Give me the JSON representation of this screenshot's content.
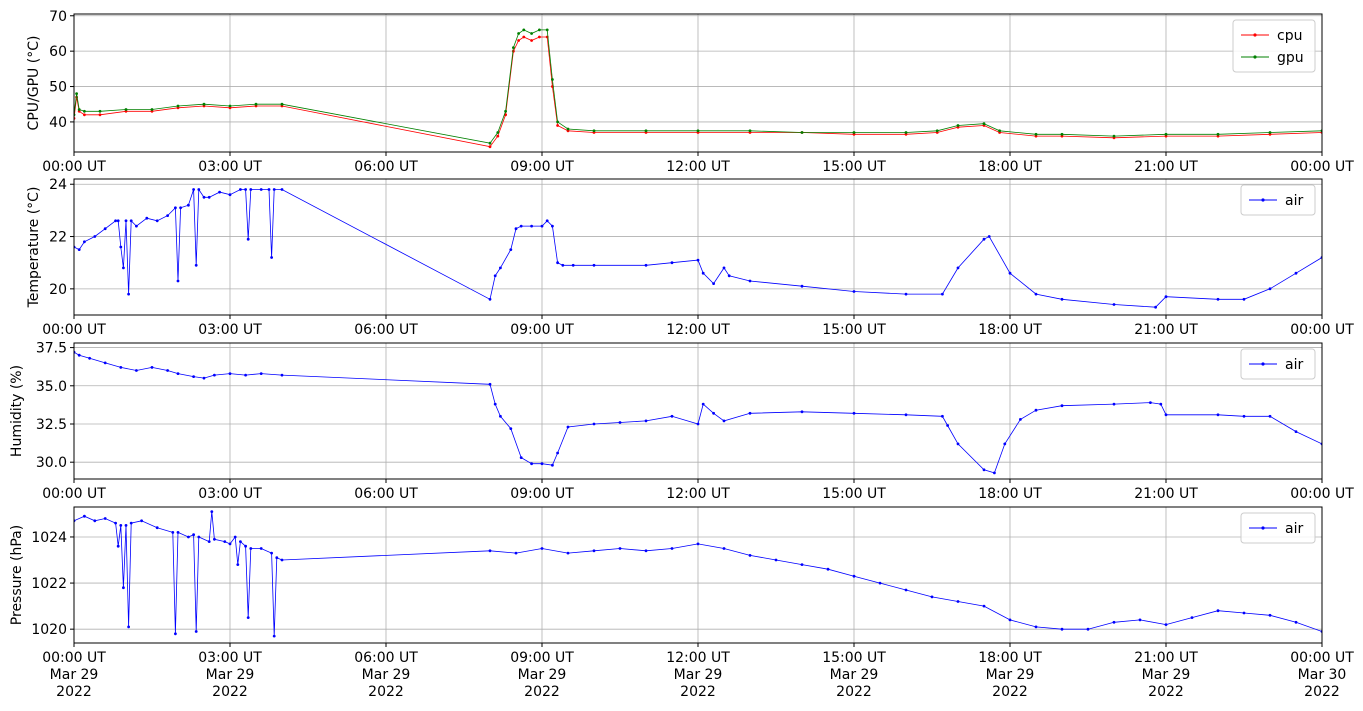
{
  "figure": {
    "background": "#ffffff",
    "grid_color": "#b0b0b0",
    "date_line_1": "Mar 29",
    "date_line_2": "2022",
    "date_line_1_end": "Mar 30",
    "date_line_2_end": "2022"
  },
  "chart_data": [
    {
      "type": "line",
      "name": "cpu-gpu-panel",
      "ylabel": "CPU/GPU (°C)",
      "xlim": [
        0,
        24
      ],
      "ylim": [
        31.5,
        70.5
      ],
      "yticks": [
        40,
        50,
        60,
        70
      ],
      "ytick_labels": [
        "40",
        "50",
        "60",
        "70"
      ],
      "xticks": [
        0,
        3,
        6,
        9,
        12,
        15,
        18,
        21,
        24
      ],
      "xtick_labels": [
        "00:00 UT",
        "03:00 UT",
        "06:00 UT",
        "09:00 UT",
        "12:00 UT",
        "15:00 UT",
        "18:00 UT",
        "21:00 UT",
        "00:00 UT"
      ],
      "grid": true,
      "legend": "top-right",
      "series": [
        {
          "name": "cpu",
          "color": "#ff0000",
          "x": [
            0,
            0.05,
            0.1,
            0.2,
            0.5,
            1.0,
            1.5,
            2.0,
            2.5,
            3.0,
            3.5,
            4.0,
            8.0,
            8.15,
            8.3,
            8.45,
            8.55,
            8.65,
            8.8,
            8.95,
            9.1,
            9.2,
            9.3,
            9.5,
            10,
            11,
            12,
            13,
            14,
            15,
            16,
            16.6,
            17,
            17.5,
            17.8,
            18.5,
            19,
            20,
            21,
            22,
            23,
            24
          ],
          "y": [
            41,
            47,
            43,
            42,
            42,
            43,
            43,
            44,
            44.5,
            44,
            44.5,
            44.5,
            33,
            36,
            42,
            60,
            63,
            64,
            63,
            64,
            64,
            50,
            39,
            37.5,
            37,
            37,
            37,
            37,
            37,
            36.5,
            36.5,
            37,
            38.5,
            39,
            37,
            36,
            36,
            35.5,
            36,
            36,
            36.5,
            37
          ]
        },
        {
          "name": "gpu",
          "color": "#008000",
          "x": [
            0,
            0.05,
            0.1,
            0.2,
            0.5,
            1.0,
            1.5,
            2.0,
            2.5,
            3.0,
            3.5,
            4.0,
            8.0,
            8.15,
            8.3,
            8.45,
            8.55,
            8.65,
            8.8,
            8.95,
            9.1,
            9.2,
            9.3,
            9.5,
            10,
            11,
            12,
            13,
            14,
            15,
            16,
            16.6,
            17,
            17.5,
            17.8,
            18.5,
            19,
            20,
            21,
            22,
            23,
            24
          ],
          "y": [
            42,
            48,
            43.5,
            43,
            43,
            43.5,
            43.5,
            44.5,
            45,
            44.5,
            45,
            45,
            34,
            37,
            43,
            61,
            65,
            66,
            65,
            66,
            66,
            52,
            40,
            38,
            37.5,
            37.5,
            37.5,
            37.5,
            37,
            37,
            37,
            37.5,
            39,
            39.5,
            37.5,
            36.5,
            36.5,
            36,
            36.5,
            36.5,
            37,
            37.5
          ]
        }
      ]
    },
    {
      "type": "line",
      "name": "temperature-panel",
      "ylabel": "Temperature (°C)",
      "xlim": [
        0,
        24
      ],
      "ylim": [
        19.0,
        24.2
      ],
      "yticks": [
        20,
        22,
        24
      ],
      "ytick_labels": [
        "20",
        "22",
        "24"
      ],
      "xticks": [
        0,
        3,
        6,
        9,
        12,
        15,
        18,
        21,
        24
      ],
      "xtick_labels": [
        "00:00 UT",
        "03:00 UT",
        "06:00 UT",
        "09:00 UT",
        "12:00 UT",
        "15:00 UT",
        "18:00 UT",
        "21:00 UT",
        "00:00 UT"
      ],
      "grid": true,
      "legend": "top-right",
      "series": [
        {
          "name": "air",
          "color": "#0000ff",
          "x": [
            0,
            0.1,
            0.2,
            0.4,
            0.6,
            0.8,
            0.85,
            0.9,
            0.95,
            1.0,
            1.05,
            1.1,
            1.2,
            1.4,
            1.6,
            1.8,
            1.95,
            2.0,
            2.05,
            2.2,
            2.3,
            2.35,
            2.4,
            2.5,
            2.6,
            2.8,
            3.0,
            3.2,
            3.3,
            3.35,
            3.4,
            3.6,
            3.75,
            3.8,
            3.85,
            4.0,
            8.0,
            8.1,
            8.2,
            8.4,
            8.5,
            8.6,
            8.8,
            9.0,
            9.1,
            9.2,
            9.3,
            9.4,
            9.6,
            10,
            11,
            11.5,
            12,
            12.1,
            12.3,
            12.5,
            12.6,
            13,
            14,
            15,
            16,
            16.7,
            17,
            17.5,
            17.6,
            18,
            18.5,
            19,
            20,
            20.8,
            21,
            22,
            22.5,
            23,
            23.5,
            24
          ],
          "y": [
            21.6,
            21.5,
            21.8,
            22.0,
            22.3,
            22.6,
            22.6,
            21.6,
            20.8,
            22.6,
            19.8,
            22.6,
            22.4,
            22.7,
            22.6,
            22.8,
            23.1,
            20.3,
            23.1,
            23.2,
            23.8,
            20.9,
            23.8,
            23.5,
            23.5,
            23.7,
            23.6,
            23.8,
            23.8,
            21.9,
            23.8,
            23.8,
            23.8,
            21.2,
            23.8,
            23.8,
            19.6,
            20.5,
            20.8,
            21.5,
            22.3,
            22.4,
            22.4,
            22.4,
            22.6,
            22.4,
            21.0,
            20.9,
            20.9,
            20.9,
            20.9,
            21.0,
            21.1,
            20.6,
            20.2,
            20.8,
            20.5,
            20.3,
            20.1,
            19.9,
            19.8,
            19.8,
            20.8,
            21.9,
            22.0,
            20.6,
            19.8,
            19.6,
            19.4,
            19.3,
            19.7,
            19.6,
            19.6,
            20.0,
            20.6,
            21.2
          ]
        }
      ]
    },
    {
      "type": "line",
      "name": "humidity-panel",
      "ylabel": "Humidity (%)",
      "xlim": [
        0,
        24
      ],
      "ylim": [
        28.9,
        37.8
      ],
      "yticks": [
        30.0,
        32.5,
        35.0,
        37.5
      ],
      "ytick_labels": [
        "30.0",
        "32.5",
        "35.0",
        "37.5"
      ],
      "xticks": [
        0,
        3,
        6,
        9,
        12,
        15,
        18,
        21,
        24
      ],
      "xtick_labels": [
        "00:00 UT",
        "03:00 UT",
        "06:00 UT",
        "09:00 UT",
        "12:00 UT",
        "15:00 UT",
        "18:00 UT",
        "21:00 UT",
        "00:00 UT"
      ],
      "grid": true,
      "legend": "top-right",
      "series": [
        {
          "name": "air",
          "color": "#0000ff",
          "x": [
            0,
            0.1,
            0.3,
            0.6,
            0.9,
            1.2,
            1.5,
            1.8,
            2.0,
            2.3,
            2.5,
            2.7,
            3.0,
            3.3,
            3.6,
            4.0,
            8.0,
            8.1,
            8.2,
            8.4,
            8.6,
            8.8,
            9.0,
            9.2,
            9.3,
            9.5,
            10,
            10.5,
            11,
            11.5,
            12,
            12.1,
            12.3,
            12.5,
            13,
            14,
            15,
            16,
            16.7,
            16.8,
            17,
            17.5,
            17.7,
            17.9,
            18.2,
            18.5,
            19,
            20,
            20.7,
            20.9,
            21,
            22,
            22.5,
            23,
            23.5,
            24
          ],
          "y": [
            37.2,
            37.0,
            36.8,
            36.5,
            36.2,
            36.0,
            36.2,
            36.0,
            35.8,
            35.6,
            35.5,
            35.7,
            35.8,
            35.7,
            35.8,
            35.7,
            35.1,
            33.8,
            33.0,
            32.2,
            30.3,
            29.9,
            29.9,
            29.8,
            30.6,
            32.3,
            32.5,
            32.6,
            32.7,
            33.0,
            32.5,
            33.8,
            33.2,
            32.7,
            33.2,
            33.3,
            33.2,
            33.1,
            33.0,
            32.4,
            31.2,
            29.5,
            29.3,
            31.2,
            32.8,
            33.4,
            33.7,
            33.8,
            33.9,
            33.8,
            33.1,
            33.1,
            33.0,
            33.0,
            32.0,
            31.2
          ]
        }
      ]
    },
    {
      "type": "line",
      "name": "pressure-panel",
      "ylabel": "Pressure (hPa)",
      "xlim": [
        0,
        24
      ],
      "ylim": [
        1019.4,
        1025.3
      ],
      "yticks": [
        1020,
        1022,
        1024
      ],
      "ytick_labels": [
        "1020",
        "1022",
        "1024"
      ],
      "xticks": [
        0,
        3,
        6,
        9,
        12,
        15,
        18,
        21,
        24
      ],
      "xtick_labels": [
        "00:00 UT",
        "03:00 UT",
        "06:00 UT",
        "09:00 UT",
        "12:00 UT",
        "15:00 UT",
        "18:00 UT",
        "21:00 UT",
        "00:00 UT"
      ],
      "grid": true,
      "legend": "top-right",
      "series": [
        {
          "name": "air",
          "color": "#0000ff",
          "x": [
            0,
            0.2,
            0.4,
            0.6,
            0.8,
            0.85,
            0.9,
            0.95,
            1.0,
            1.05,
            1.1,
            1.3,
            1.6,
            1.9,
            1.95,
            2.0,
            2.2,
            2.3,
            2.35,
            2.4,
            2.6,
            2.65,
            2.7,
            2.9,
            3.0,
            3.1,
            3.15,
            3.2,
            3.3,
            3.35,
            3.4,
            3.6,
            3.8,
            3.85,
            3.9,
            4.0,
            8.0,
            8.5,
            9.0,
            9.5,
            10,
            10.5,
            11,
            11.5,
            12,
            12.5,
            13,
            13.5,
            14,
            14.5,
            15,
            15.5,
            16,
            16.5,
            17,
            17.5,
            18,
            18.5,
            19,
            19.5,
            20,
            20.5,
            21,
            21.5,
            22,
            22.5,
            23,
            23.5,
            24
          ],
          "y": [
            1024.7,
            1024.9,
            1024.7,
            1024.8,
            1024.6,
            1023.6,
            1024.5,
            1021.8,
            1024.5,
            1020.1,
            1024.6,
            1024.7,
            1024.4,
            1024.2,
            1019.8,
            1024.2,
            1024.0,
            1024.1,
            1019.9,
            1024.0,
            1023.8,
            1025.1,
            1023.9,
            1023.8,
            1023.7,
            1024.0,
            1022.8,
            1023.8,
            1023.6,
            1020.5,
            1023.5,
            1023.5,
            1023.3,
            1019.7,
            1023.1,
            1023.0,
            1023.4,
            1023.3,
            1023.5,
            1023.3,
            1023.4,
            1023.5,
            1023.4,
            1023.5,
            1023.7,
            1023.5,
            1023.2,
            1023.0,
            1022.8,
            1022.6,
            1022.3,
            1022.0,
            1021.7,
            1021.4,
            1021.2,
            1021.0,
            1020.4,
            1020.1,
            1020.0,
            1020.0,
            1020.3,
            1020.4,
            1020.2,
            1020.5,
            1020.8,
            1020.7,
            1020.6,
            1020.3,
            1019.9
          ]
        }
      ]
    }
  ]
}
